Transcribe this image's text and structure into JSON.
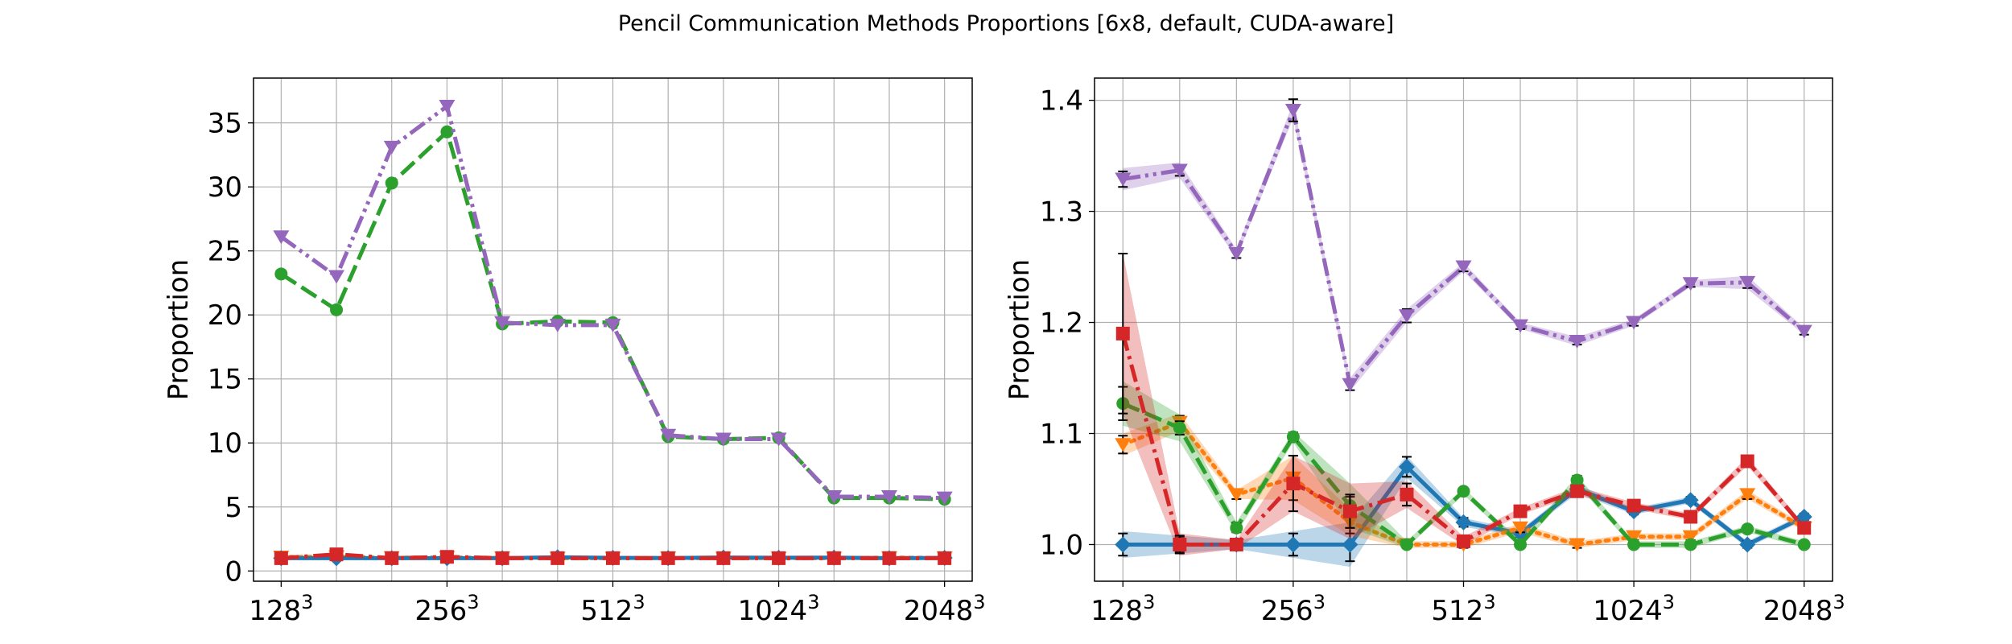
{
  "title": "Pencil Communication Methods Proportions [6x8, default, CUDA-aware]",
  "chart_data": [
    {
      "type": "line",
      "ylabel": "Proportion",
      "xlabel": "",
      "x_index": [
        0,
        1,
        2,
        3,
        4,
        5,
        6,
        7,
        8,
        9,
        10,
        11,
        12
      ],
      "xtick_positions": [
        0,
        3,
        6,
        9,
        12
      ],
      "xtick_labels": [
        {
          "base": "128",
          "exp": "3"
        },
        {
          "base": "256",
          "exp": "3"
        },
        {
          "base": "512",
          "exp": "3"
        },
        {
          "base": "1024",
          "exp": "3"
        },
        {
          "base": "2048",
          "exp": "3"
        }
      ],
      "xlim": [
        -0.5,
        12.5
      ],
      "ylim": [
        -0.8,
        38.5
      ],
      "yticks": [
        0,
        5,
        10,
        15,
        20,
        25,
        30,
        35
      ],
      "grid": true,
      "series": [
        {
          "color": "#ff7f0e",
          "style": "dotted",
          "marker": "triangle-down",
          "values": [
            1.09,
            1.11,
            1.04,
            1.06,
            1.02,
            1.0,
            1.0,
            1.02,
            1.0,
            1.01,
            1.0,
            1.04,
            1.02
          ]
        },
        {
          "color": "#1f77b4",
          "style": "solid",
          "marker": "diamond",
          "values": [
            1.0,
            1.0,
            1.0,
            1.0,
            1.0,
            1.07,
            1.02,
            1.01,
            1.05,
            1.03,
            1.04,
            1.0,
            1.02
          ]
        },
        {
          "color": "#2ca02c",
          "style": "dashed",
          "marker": "circle",
          "values": [
            23.2,
            20.4,
            30.3,
            34.3,
            19.3,
            19.5,
            19.4,
            10.5,
            10.3,
            10.4,
            5.7,
            5.7,
            5.6
          ]
        },
        {
          "color": "#9467bd",
          "style": "dashdotdot",
          "marker": "triangle-down",
          "values": [
            26.1,
            23.0,
            33.1,
            36.3,
            19.4,
            19.2,
            19.2,
            10.6,
            10.3,
            10.3,
            5.8,
            5.8,
            5.7
          ]
        },
        {
          "color": "#d62728",
          "style": "dashdot",
          "marker": "square",
          "values": [
            1.0,
            1.3,
            1.0,
            1.1,
            1.0,
            1.0,
            1.0,
            1.0,
            1.0,
            1.0,
            1.0,
            1.0,
            1.0
          ]
        }
      ]
    },
    {
      "type": "line",
      "ylabel": "Proportion",
      "xlabel": "",
      "x_index": [
        0,
        1,
        2,
        3,
        4,
        5,
        6,
        7,
        8,
        9,
        10,
        11,
        12
      ],
      "xtick_positions": [
        0,
        3,
        6,
        9,
        12
      ],
      "xtick_labels": [
        {
          "base": "128",
          "exp": "3"
        },
        {
          "base": "256",
          "exp": "3"
        },
        {
          "base": "512",
          "exp": "3"
        },
        {
          "base": "1024",
          "exp": "3"
        },
        {
          "base": "2048",
          "exp": "3"
        }
      ],
      "xlim": [
        -0.5,
        12.5
      ],
      "ylim": [
        0.967,
        1.42
      ],
      "yticks": [
        1.0,
        1.1,
        1.2,
        1.3,
        1.4
      ],
      "ytick_labels": [
        "1.0",
        "1.1",
        "1.2",
        "1.3",
        "1.4"
      ],
      "grid": true,
      "series": [
        {
          "color": "#1f77b4",
          "style": "solid",
          "marker": "diamond",
          "values": [
            1.0,
            1.0,
            1.0,
            1.0,
            1.0,
            1.07,
            1.02,
            1.01,
            1.05,
            1.03,
            1.04,
            1.0,
            1.025
          ],
          "err": [
            0.01,
            0.007,
            0.003,
            0.01,
            0.015,
            0.009,
            0.004,
            0.003,
            0.004,
            0.003,
            0.003,
            0.003,
            0.003
          ],
          "band": [
            0.012,
            0.008,
            0.004,
            0.012,
            0.02,
            0.01,
            0.004,
            0.003,
            0.004,
            0.003,
            0.003,
            0.003,
            0.003
          ]
        },
        {
          "color": "#ff7f0e",
          "style": "dotted",
          "marker": "triangle-down",
          "values": [
            1.09,
            1.11,
            1.045,
            1.06,
            1.02,
            1.0,
            1.0,
            1.015,
            1.0,
            1.007,
            1.007,
            1.045,
            1.015
          ],
          "err": [
            0.008,
            0.006,
            0.004,
            0.02,
            0.01,
            0.003,
            0.003,
            0.004,
            0.003,
            0.003,
            0.003,
            0.004,
            0.003
          ],
          "band": [
            0.01,
            0.008,
            0.004,
            0.02,
            0.012,
            0.003,
            0.003,
            0.004,
            0.003,
            0.003,
            0.003,
            0.004,
            0.003
          ]
        },
        {
          "color": "#2ca02c",
          "style": "dashed",
          "marker": "circle",
          "values": [
            1.127,
            1.105,
            1.015,
            1.097,
            1.035,
            1.0,
            1.048,
            1.0,
            1.058,
            1.0,
            1.0,
            1.014,
            1.0
          ],
          "err": [
            0.015,
            0.006,
            0.004,
            0.004,
            0.008,
            0.003,
            0.003,
            0.003,
            0.004,
            0.003,
            0.003,
            0.003,
            0.003
          ],
          "band": [
            0.02,
            0.012,
            0.005,
            0.005,
            0.02,
            0.003,
            0.003,
            0.003,
            0.004,
            0.003,
            0.003,
            0.003,
            0.003
          ]
        },
        {
          "color": "#d62728",
          "style": "dashdot",
          "marker": "square",
          "values": [
            1.19,
            1.0,
            1.0,
            1.055,
            1.03,
            1.045,
            1.003,
            1.03,
            1.048,
            1.035,
            1.025,
            1.075,
            1.015
          ],
          "err": [
            0.072,
            0.008,
            0.003,
            0.025,
            0.015,
            0.01,
            0.004,
            0.003,
            0.004,
            0.003,
            0.003,
            0.004,
            0.003
          ],
          "band": [
            0.072,
            0.01,
            0.004,
            0.025,
            0.025,
            0.012,
            0.004,
            0.003,
            0.004,
            0.003,
            0.003,
            0.004,
            0.003
          ]
        },
        {
          "color": "#9467bd",
          "style": "dashdotdot",
          "marker": "triangle-down",
          "values": [
            1.329,
            1.337,
            1.262,
            1.391,
            1.144,
            1.206,
            1.25,
            1.197,
            1.183,
            1.2,
            1.235,
            1.236,
            1.192
          ],
          "err": [
            0.007,
            0.005,
            0.004,
            0.01,
            0.005,
            0.006,
            0.004,
            0.003,
            0.003,
            0.003,
            0.003,
            0.005,
            0.003
          ],
          "band": [
            0.01,
            0.007,
            0.004,
            0.007,
            0.006,
            0.006,
            0.004,
            0.003,
            0.004,
            0.003,
            0.003,
            0.006,
            0.003
          ]
        }
      ]
    }
  ]
}
